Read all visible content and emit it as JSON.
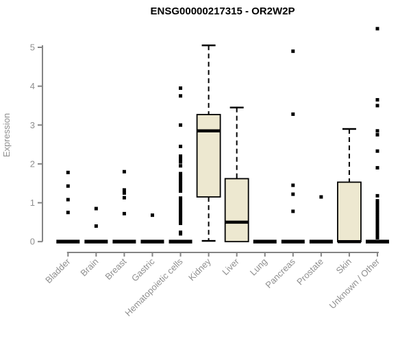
{
  "page": {
    "background": "#ffffff"
  },
  "chart_data": {
    "type": "box",
    "title": "ENSG00000217315 - OR2W2P",
    "xlabel": "",
    "ylabel": "Expression",
    "ylim": [
      0,
      5.5
    ],
    "yticks": [
      0,
      1,
      2,
      3,
      4,
      5
    ],
    "grid": false,
    "legend": "none",
    "categories": [
      "Bladder",
      "Brain",
      "Breast",
      "Gastric",
      "Hematopoietic cells",
      "Kidney",
      "Liver",
      "Lung",
      "Pancreas",
      "Prostate",
      "Skin",
      "Unknown / Other"
    ],
    "boxes": [
      {
        "category": "Bladder",
        "low": 0,
        "q1": 0,
        "median": 0,
        "q3": 0,
        "high": 0,
        "outliers": [
          1.78,
          1.43,
          1.08,
          0.75
        ]
      },
      {
        "category": "Brain",
        "low": 0,
        "q1": 0,
        "median": 0,
        "q3": 0,
        "high": 0,
        "outliers": [
          0.85,
          0.4
        ]
      },
      {
        "category": "Breast",
        "low": 0,
        "q1": 0,
        "median": 0,
        "q3": 0,
        "high": 0,
        "outliers": [
          1.8,
          1.33,
          1.25,
          1.13,
          0.72
        ]
      },
      {
        "category": "Gastric",
        "low": 0,
        "q1": 0,
        "median": 0,
        "q3": 0,
        "high": 0,
        "outliers": [
          0.68
        ]
      },
      {
        "category": "Hematopoietic cells",
        "low": 0,
        "q1": 0,
        "median": 0,
        "q3": 0,
        "high": 0,
        "outliers": [
          3.95,
          3.75,
          3.0,
          2.45,
          2.2,
          2.12,
          2.05,
          1.95,
          1.75,
          1.7,
          1.65,
          1.6,
          1.55,
          1.5,
          1.45,
          1.4,
          1.35,
          1.3,
          1.12,
          1.07,
          1.02,
          0.97,
          0.92,
          0.87,
          0.82,
          0.78,
          0.74,
          0.7,
          0.66,
          0.62,
          0.57,
          0.52,
          0.47,
          0.24,
          0.2
        ]
      },
      {
        "category": "Kidney",
        "low": 0.02,
        "q1": 1.15,
        "median": 2.85,
        "q3": 3.27,
        "high": 5.05,
        "outliers": []
      },
      {
        "category": "Liver",
        "low": 0,
        "q1": 0,
        "median": 0.5,
        "q3": 1.62,
        "high": 3.45,
        "outliers": []
      },
      {
        "category": "Lung",
        "low": 0,
        "q1": 0,
        "median": 0,
        "q3": 0,
        "high": 0,
        "outliers": []
      },
      {
        "category": "Pancreas",
        "low": 0,
        "q1": 0,
        "median": 0,
        "q3": 0,
        "high": 0,
        "outliers": [
          4.9,
          3.28,
          1.45,
          1.22,
          0.78
        ]
      },
      {
        "category": "Prostate",
        "low": 0,
        "q1": 0,
        "median": 0,
        "q3": 0,
        "high": 0,
        "outliers": [
          1.15
        ]
      },
      {
        "category": "Skin",
        "low": 0,
        "q1": 0,
        "median": 0,
        "q3": 1.53,
        "high": 2.9,
        "outliers": []
      },
      {
        "category": "Unknown / Other",
        "low": 0,
        "q1": 0,
        "median": 0,
        "q3": 0,
        "high": 0,
        "outliers": [
          5.48,
          3.65,
          3.5,
          2.85,
          2.75,
          2.33,
          1.9,
          1.18,
          1.05,
          1.0,
          0.95,
          0.9,
          0.85,
          0.8,
          0.75,
          0.7,
          0.65,
          0.6,
          0.55,
          0.5,
          0.45,
          0.4,
          0.35,
          0.3,
          0.25,
          0.2,
          0.15,
          0.1
        ]
      }
    ],
    "colors": {
      "box_fill": "#ede8d0",
      "box_border": "#000000",
      "median": "#000000",
      "whisker": "#000000",
      "outlier": "#000000",
      "axis_line": "#848484",
      "tick_text": "#8f8f8f",
      "title_text": "#000000"
    }
  }
}
